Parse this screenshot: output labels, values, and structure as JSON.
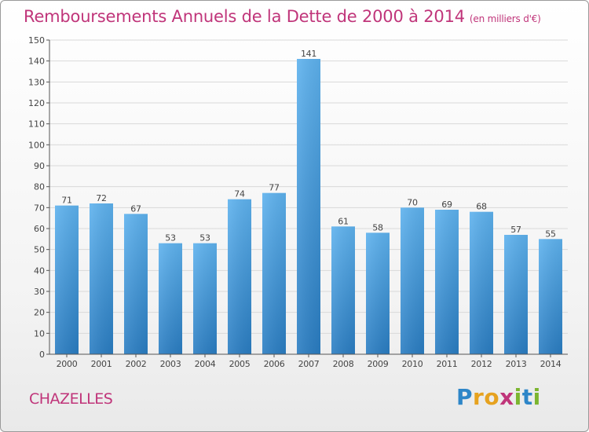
{
  "header": {
    "title": "Remboursements Annuels de la Dette de 2000 à 2014",
    "subtitle": "(en milliers d'€)"
  },
  "footer": {
    "commune": "CHAZELLES",
    "logo_text": "Proxiti",
    "logo_letters": [
      {
        "ch": "P",
        "color": "#2e86c8"
      },
      {
        "ch": "r",
        "color": "#e6a21f"
      },
      {
        "ch": "o",
        "color": "#e6a21f"
      },
      {
        "ch": "x",
        "color": "#c0357a"
      },
      {
        "ch": "i",
        "color": "#7cb52f"
      },
      {
        "ch": "t",
        "color": "#2e86c8"
      },
      {
        "ch": "i",
        "color": "#7cb52f"
      }
    ]
  },
  "colors": {
    "bar_light": "#5cb0ec",
    "bar_dark": "#2a7fc4",
    "title": "#c0357a",
    "grid": "#d6d6d6"
  },
  "chart_data": {
    "type": "bar",
    "title": "Remboursements Annuels de la Dette de 2000 à 2014",
    "subtitle": "(en milliers d'€)",
    "categories": [
      "2000",
      "2001",
      "2002",
      "2003",
      "2004",
      "2005",
      "2006",
      "2007",
      "2008",
      "2009",
      "2010",
      "2011",
      "2012",
      "2013",
      "2014"
    ],
    "values": [
      71,
      72,
      67,
      53,
      53,
      74,
      77,
      141,
      61,
      58,
      70,
      69,
      68,
      57,
      55
    ],
    "ylim": [
      0,
      150
    ],
    "yticks": [
      0,
      10,
      20,
      30,
      40,
      50,
      60,
      70,
      80,
      90,
      100,
      110,
      120,
      130,
      140,
      150
    ],
    "grid": true,
    "xlabel": "",
    "ylabel": ""
  }
}
